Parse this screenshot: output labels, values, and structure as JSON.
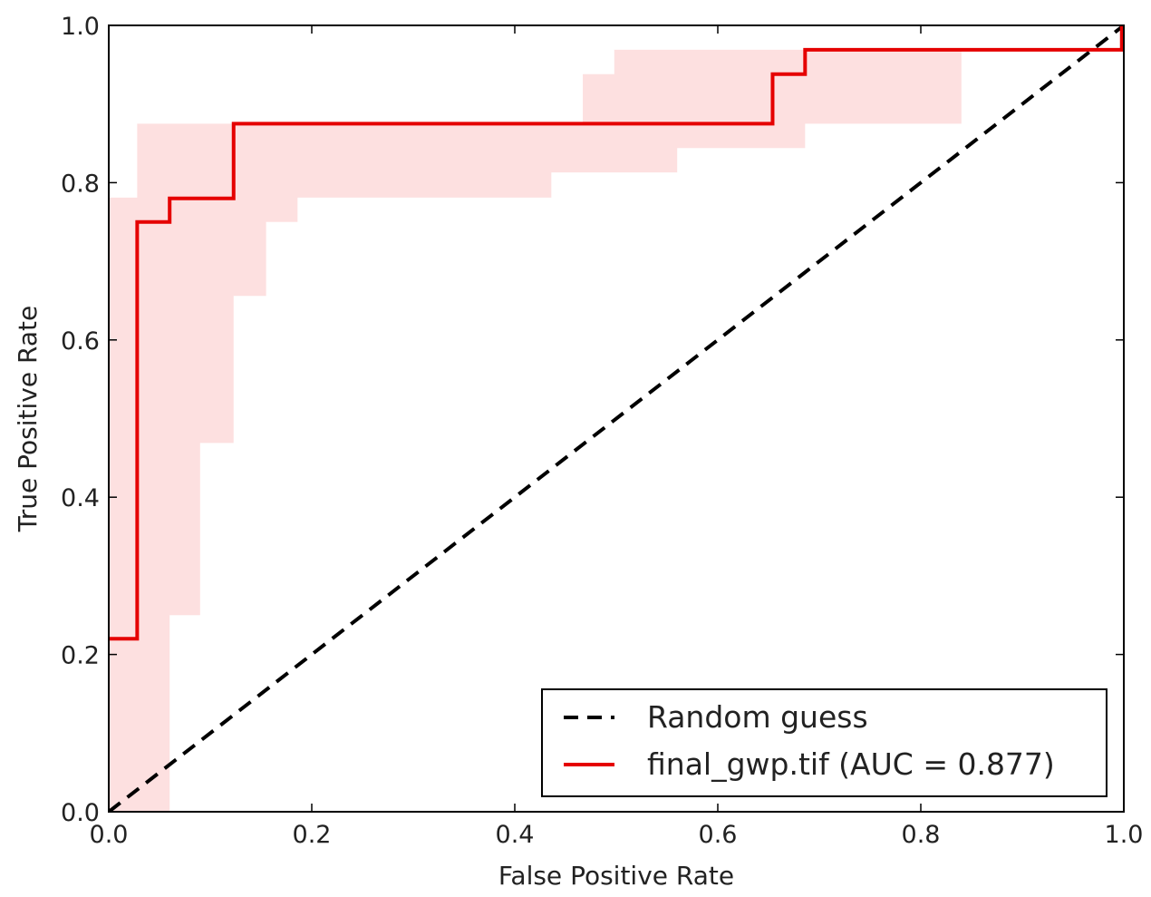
{
  "chart_data": {
    "type": "line",
    "title": "",
    "xlabel": "False Positive Rate",
    "ylabel": "True Positive Rate",
    "xlim": [
      0.0,
      1.0
    ],
    "ylim": [
      0.0,
      1.0
    ],
    "xticks": [
      "0.0",
      "0.2",
      "0.4",
      "0.6",
      "0.8",
      "1.0"
    ],
    "yticks": [
      "0.0",
      "0.2",
      "0.4",
      "0.6",
      "0.8",
      "1.0"
    ],
    "grid": false,
    "legend_position": "lower-right",
    "series": [
      {
        "name": "Random guess",
        "style": "dashed",
        "color": "#000000",
        "x": [
          0.0,
          1.0
        ],
        "y": [
          0.0,
          1.0
        ]
      },
      {
        "name": "final_gwp.tif (AUC = 0.877)",
        "style": "solid",
        "color": "#e50000",
        "x": [
          0.0,
          0.028,
          0.028,
          0.06,
          0.06,
          0.123,
          0.123,
          0.654,
          0.654,
          0.686,
          0.686,
          0.998,
          0.998
        ],
        "y": [
          0.22,
          0.22,
          0.75,
          0.75,
          0.78,
          0.78,
          0.875,
          0.875,
          0.938,
          0.938,
          0.969,
          0.969,
          1.0
        ]
      }
    ],
    "confidence_band": {
      "color": "#fde0e0",
      "x": [
        0.0,
        0.028,
        0.028,
        0.06,
        0.06,
        0.09,
        0.09,
        0.123,
        0.123,
        0.155,
        0.155,
        0.186,
        0.186,
        0.436,
        0.436,
        0.467,
        0.467,
        0.498,
        0.498,
        0.56,
        0.56,
        0.686,
        0.686,
        0.84
      ],
      "upper": [
        0.781,
        0.781,
        0.875,
        0.875,
        0.875,
        0.875,
        0.875,
        0.875,
        0.875,
        0.875,
        0.875,
        0.875,
        0.875,
        0.875,
        0.875,
        0.875,
        0.938,
        0.938,
        0.969,
        0.969,
        0.969,
        0.969,
        0.969,
        0.969
      ],
      "lower": [
        0.0,
        0.0,
        0.0,
        0.0,
        0.25,
        0.25,
        0.469,
        0.469,
        0.656,
        0.656,
        0.75,
        0.75,
        0.781,
        0.781,
        0.813,
        0.813,
        0.813,
        0.813,
        0.813,
        0.813,
        0.844,
        0.844,
        0.875,
        0.875
      ]
    }
  }
}
